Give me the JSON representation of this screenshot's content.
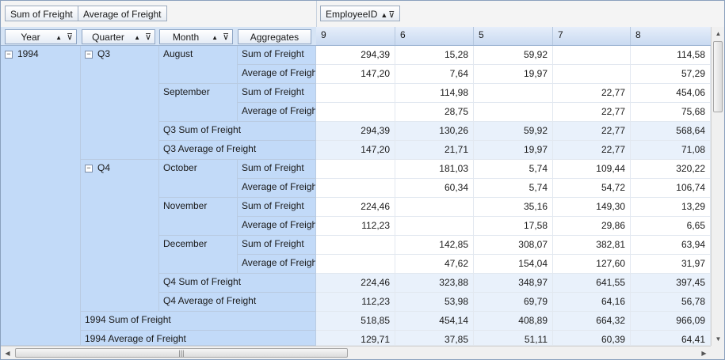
{
  "data_fields": [
    "Sum of Freight",
    "Average of Freight"
  ],
  "column_field": {
    "label": "EmployeeID"
  },
  "row_fields": [
    "Year",
    "Quarter",
    "Month",
    "Aggregates"
  ],
  "employee_ids": [
    "9",
    "6",
    "5",
    "7",
    "8"
  ],
  "year": {
    "label": "1994",
    "expander": "−"
  },
  "quarters": [
    {
      "label": "Q3",
      "expander": "−"
    },
    {
      "label": "Q4",
      "expander": "−"
    }
  ],
  "months": [
    "August",
    "September",
    "October",
    "November",
    "December"
  ],
  "aggregates": [
    "Sum of Freight",
    "Average of Freight"
  ],
  "totals": {
    "q3_sum": "Q3 Sum of Freight",
    "q3_avg": "Q3 Average of Freight",
    "q4_sum": "Q4 Sum of Freight",
    "q4_avg": "Q4 Average of Freight",
    "y_sum": "1994 Sum of Freight",
    "y_avg": "1994 Average of Freight"
  },
  "rows": [
    [
      "294,39",
      "15,28",
      "59,92",
      "",
      "114,58"
    ],
    [
      "147,20",
      "7,64",
      "19,97",
      "",
      "57,29"
    ],
    [
      "",
      "114,98",
      "",
      "22,77",
      "454,06"
    ],
    [
      "",
      "28,75",
      "",
      "22,77",
      "75,68"
    ],
    [
      "294,39",
      "130,26",
      "59,92",
      "22,77",
      "568,64"
    ],
    [
      "147,20",
      "21,71",
      "19,97",
      "22,77",
      "71,08"
    ],
    [
      "",
      "181,03",
      "5,74",
      "109,44",
      "320,22"
    ],
    [
      "",
      "60,34",
      "5,74",
      "54,72",
      "106,74"
    ],
    [
      "224,46",
      "",
      "35,16",
      "149,30",
      "13,29"
    ],
    [
      "112,23",
      "",
      "17,58",
      "29,86",
      "6,65"
    ],
    [
      "",
      "142,85",
      "308,07",
      "382,81",
      "63,94"
    ],
    [
      "",
      "47,62",
      "154,04",
      "127,60",
      "31,97"
    ],
    [
      "224,46",
      "323,88",
      "348,97",
      "641,55",
      "397,45"
    ],
    [
      "112,23",
      "53,98",
      "69,79",
      "64,16",
      "56,78"
    ],
    [
      "518,85",
      "454,14",
      "408,89",
      "664,32",
      "966,09"
    ],
    [
      "129,71",
      "37,85",
      "51,11",
      "60,39",
      "64,41"
    ]
  ],
  "icons": {
    "sort": "▲",
    "filter": "funnel-icon",
    "up": "▲",
    "down": "▼",
    "left": "◀",
    "right": "▶"
  },
  "colors": {
    "header": "#d6e4f5",
    "rowheader": "#c2daf8",
    "total": "#e9f1fb",
    "border": "#b9cbe2"
  }
}
